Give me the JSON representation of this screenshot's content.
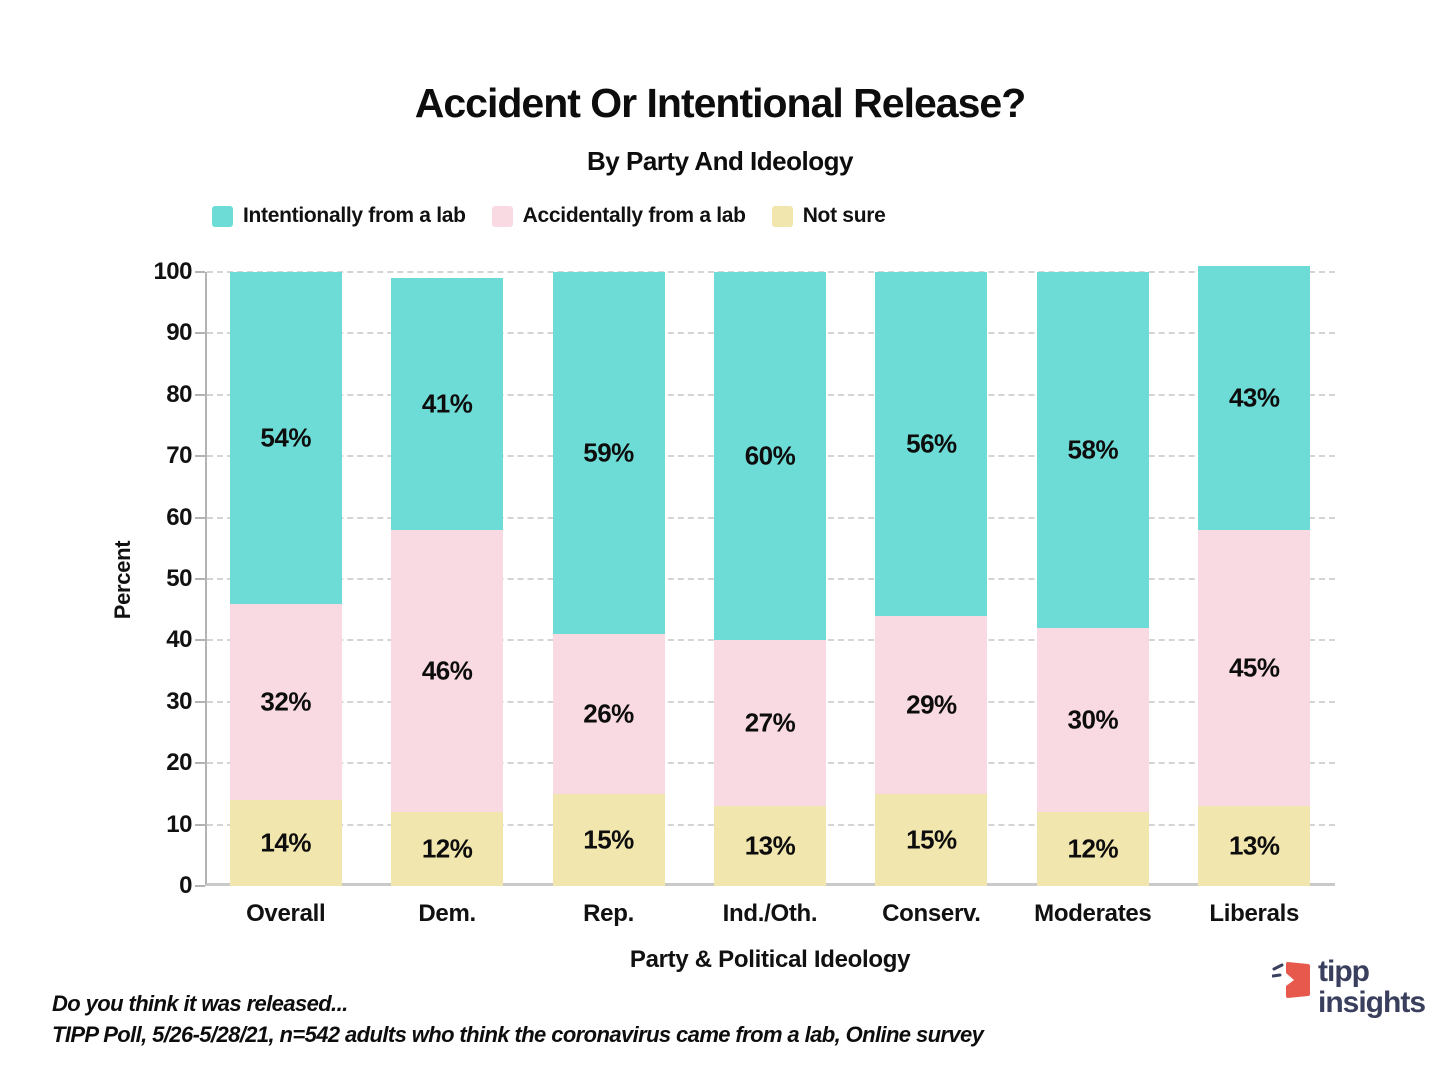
{
  "title": "Accident Or Intentional Release?",
  "subtitle": "By Party And Ideology",
  "legend": [
    {
      "label": "Intentionally from a lab",
      "color": "#6EDCD6"
    },
    {
      "label": "Accidentally from a lab",
      "color": "#F9DAE2"
    },
    {
      "label": "Not sure",
      "color": "#F1E6AE"
    }
  ],
  "chart_data": {
    "type": "bar",
    "stacked": true,
    "title": "Accident Or Intentional Release?",
    "subtitle": "By Party And Ideology",
    "categories": [
      "Overall",
      "Dem.",
      "Rep.",
      "Ind./Oth.",
      "Conserv.",
      "Moderates",
      "Liberals"
    ],
    "series": [
      {
        "name": "Intentionally from a lab",
        "color": "#6EDCD6",
        "values": [
          54,
          41,
          59,
          60,
          56,
          58,
          43
        ]
      },
      {
        "name": "Accidentally from a lab",
        "color": "#F9DAE2",
        "values": [
          32,
          46,
          26,
          27,
          29,
          30,
          45
        ]
      },
      {
        "name": "Not sure",
        "color": "#F1E6AE",
        "values": [
          14,
          12,
          15,
          13,
          15,
          12,
          13
        ]
      }
    ],
    "value_suffix": "%",
    "xlabel": "Party & Political Ideology",
    "ylabel": "Percent",
    "ylim": [
      0,
      100
    ],
    "yticks": [
      0,
      10,
      20,
      30,
      40,
      50,
      60,
      70,
      80,
      90,
      100
    ],
    "grid": "horizontal-dashed",
    "legend_position": "top-left"
  },
  "footer": {
    "line1": "Do you think it was released...",
    "line2": "TIPP Poll, 5/26-5/28/21, n=542 adults who think the coronavirus came from a lab, Online survey"
  },
  "logo": {
    "line1": "tipp",
    "line2": "insights",
    "red": "#E8594D",
    "navy": "#3A3F5E"
  },
  "colors": {
    "axis": "#b3b3b3",
    "gridline": "#d4d4d4",
    "text": "#0d0d0d"
  }
}
